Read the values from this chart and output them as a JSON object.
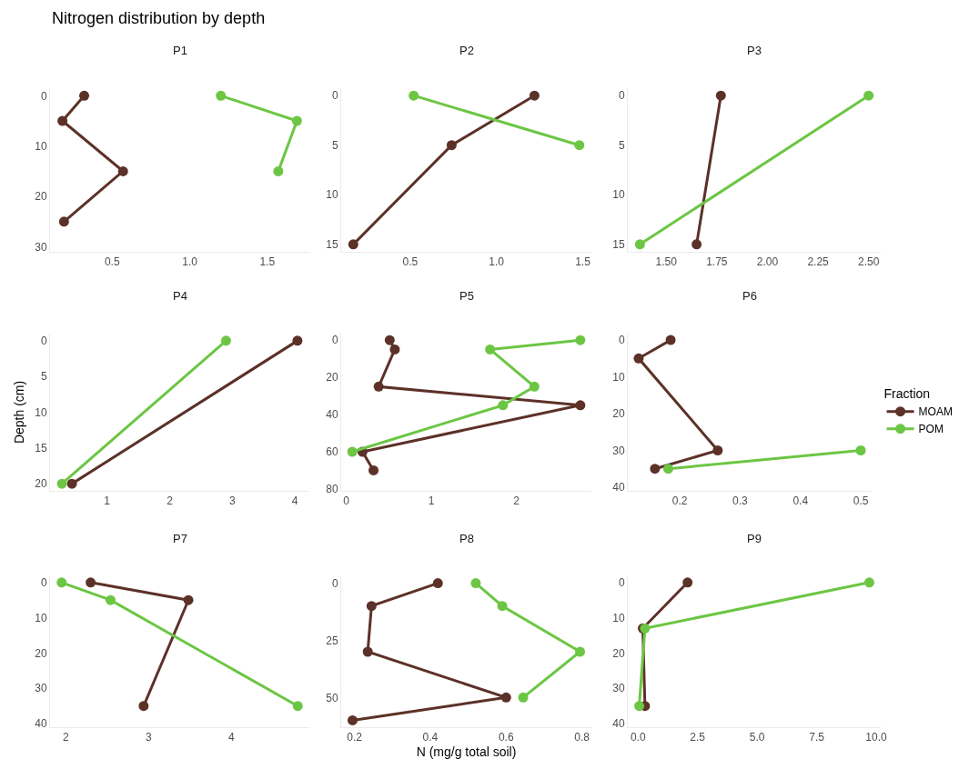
{
  "chart_data": [
    {
      "type": "line",
      "title": "P1",
      "annotations": [
        "Nitrogen distribution by depth"
      ],
      "marker": "circle",
      "grid": false,
      "xlim": [
        0.1,
        1.77
      ],
      "xticks": [
        0.5,
        {
          "value": 1,
          "label": "1.0"
        },
        1.5
      ],
      "ylim": [
        31,
        -1.5
      ],
      "yticks": [
        0,
        10,
        20,
        30
      ],
      "series": [
        {
          "color": "#5c3128",
          "x": [
            0.32,
            0.18,
            0.57,
            0.19
          ],
          "values": [
            0,
            5,
            15,
            25
          ]
        },
        {
          "color": "#6cc644",
          "x": [
            1.2,
            1.69,
            1.57
          ],
          "values": [
            0,
            5,
            15
          ]
        }
      ]
    },
    {
      "type": "line",
      "title": "P2",
      "marker": "circle",
      "grid": false,
      "xlim": [
        0.1,
        1.55
      ],
      "xticks": [
        0.5,
        {
          "value": 1,
          "label": "1.0"
        },
        1.5
      ],
      "ylim": [
        15.75,
        -0.75
      ],
      "yticks": [
        0,
        5,
        10,
        15
      ],
      "series": [
        {
          "color": "#5c3128",
          "x": [
            1.22,
            0.74,
            0.17
          ],
          "values": [
            0,
            5,
            15
          ]
        },
        {
          "color": "#6cc644",
          "x": [
            0.52,
            1.48
          ],
          "values": [
            0,
            5
          ]
        }
      ]
    },
    {
      "type": "line",
      "title": "P3",
      "marker": "circle",
      "grid": false,
      "xlim": [
        1.31,
        2.56
      ],
      "xticks": [
        {
          "value": 1.5,
          "label": "1.50"
        },
        1.75,
        {
          "value": 2,
          "label": "2.00"
        },
        2.25,
        {
          "value": 2.5,
          "label": "2.50"
        }
      ],
      "ylim": [
        15.75,
        -0.75
      ],
      "yticks": [
        0,
        5,
        10,
        15
      ],
      "series": [
        {
          "color": "#5c3128",
          "x": [
            1.77,
            1.65
          ],
          "values": [
            0,
            15
          ]
        },
        {
          "color": "#6cc644",
          "x": [
            2.5,
            1.37
          ],
          "values": [
            0,
            15
          ]
        }
      ]
    },
    {
      "type": "line",
      "title": "P4",
      "ylabel": "Depth (cm)",
      "marker": "circle",
      "grid": false,
      "xlim": [
        0.09,
        4.23
      ],
      "xticks": [
        1,
        2,
        3,
        4
      ],
      "ylim": [
        21,
        -1
      ],
      "yticks": [
        0,
        5,
        10,
        15,
        20
      ],
      "series": [
        {
          "color": "#5c3128",
          "x": [
            4.04,
            0.44
          ],
          "values": [
            0,
            20
          ]
        },
        {
          "color": "#6cc644",
          "x": [
            2.9,
            0.28
          ],
          "values": [
            0,
            20
          ]
        }
      ]
    },
    {
      "type": "line",
      "title": "P5",
      "marker": "circle",
      "grid": false,
      "xlim": [
        -0.06,
        2.88
      ],
      "xticks": [
        0,
        1,
        2
      ],
      "ylim": [
        81,
        -3.5
      ],
      "yticks": [
        0,
        20,
        40,
        60,
        80
      ],
      "series": [
        {
          "color": "#5c3128",
          "x": [
            0.51,
            0.57,
            0.38,
            2.75,
            0.19,
            0.32
          ],
          "values": [
            0,
            5,
            25,
            35,
            60,
            70
          ]
        },
        {
          "color": "#6cc644",
          "x": [
            2.75,
            1.69,
            2.21,
            1.84,
            0.07
          ],
          "values": [
            0,
            5,
            25,
            35,
            60
          ]
        }
      ]
    },
    {
      "type": "line",
      "title": "P6",
      "legend": "right",
      "legend_title": "Fraction",
      "marker": "circle",
      "grid": false,
      "xlim": [
        0.114,
        0.518
      ],
      "xticks": [
        0.2,
        0.3,
        0.4,
        0.5
      ],
      "ylim": [
        41,
        -1.75
      ],
      "yticks": [
        0,
        10,
        20,
        30,
        40
      ],
      "series": [
        {
          "name": "MOAM",
          "color": "#5c3128",
          "x": [
            0.185,
            0.132,
            0.263,
            0.159
          ],
          "values": [
            0,
            5,
            30,
            35
          ]
        },
        {
          "name": "POM",
          "color": "#6cc644",
          "x": [
            0.5,
            0.181
          ],
          "values": [
            30,
            35
          ]
        }
      ]
    },
    {
      "type": "line",
      "title": "P7",
      "marker": "circle",
      "grid": false,
      "xlim": [
        1.81,
        4.94
      ],
      "xticks": [
        2,
        3,
        4
      ],
      "ylim": [
        41,
        -1.75
      ],
      "yticks": [
        0,
        10,
        20,
        30,
        40
      ],
      "series": [
        {
          "color": "#5c3128",
          "x": [
            2.3,
            3.48,
            2.94
          ],
          "values": [
            0,
            5,
            35
          ]
        },
        {
          "color": "#6cc644",
          "x": [
            1.95,
            2.54,
            4.8
          ],
          "values": [
            0,
            5,
            35
          ]
        }
      ]
    },
    {
      "type": "line",
      "title": "P8",
      "xlabel": "N (mg/g total soil)",
      "marker": "circle",
      "grid": false,
      "xlim": [
        0.165,
        0.825
      ],
      "xticks": [
        0.2,
        0.4,
        0.6,
        0.8
      ],
      "ylim": [
        63,
        -3
      ],
      "yticks": [
        0,
        25,
        50
      ],
      "series": [
        {
          "color": "#5c3128",
          "x": [
            0.42,
            0.245,
            0.235,
            0.6,
            0.195
          ],
          "values": [
            0,
            10,
            30,
            50,
            60
          ]
        },
        {
          "color": "#6cc644",
          "x": [
            0.52,
            0.59,
            0.795,
            0.645
          ],
          "values": [
            0,
            10,
            30,
            50
          ]
        }
      ]
    },
    {
      "type": "line",
      "title": "P9",
      "marker": "circle",
      "grid": false,
      "xlim": [
        -0.43,
        10.19
      ],
      "xticks": [
        {
          "value": 0,
          "label": "0.0"
        },
        2.5,
        {
          "value": 5,
          "label": "5.0"
        },
        7.5,
        {
          "value": 10,
          "label": "10.0"
        }
      ],
      "ylim": [
        41,
        -1.75
      ],
      "yticks": [
        0,
        10,
        20,
        30,
        40
      ],
      "series": [
        {
          "color": "#5c3128",
          "x": [
            2.08,
            0.2,
            0.29
          ],
          "values": [
            0,
            13,
            35
          ]
        },
        {
          "color": "#6cc644",
          "x": [
            9.71,
            0.29,
            0.05
          ],
          "values": [
            0,
            13,
            35
          ]
        }
      ]
    }
  ]
}
